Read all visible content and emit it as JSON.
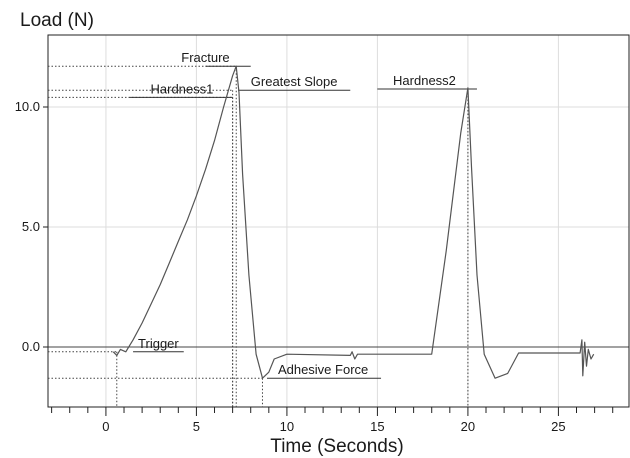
{
  "chart_data": {
    "type": "line",
    "ylabel": "Load (N)",
    "xlabel": "Time (Seconds)",
    "xlim": [
      -3.2,
      28.9
    ],
    "ylim": [
      -2.5,
      13.0
    ],
    "x_ticks": [
      0,
      5,
      10,
      15,
      20,
      25
    ],
    "x_tick_labels": [
      "0",
      "5",
      "10",
      "15",
      "20",
      "25"
    ],
    "y_ticks": [
      0,
      5,
      10
    ],
    "y_tick_labels": [
      "0.0",
      "5.0",
      "10.0"
    ],
    "grid": true,
    "series": [
      {
        "color": "#555555",
        "points": [
          [
            0.4,
            -0.2
          ],
          [
            0.6,
            -0.35
          ],
          [
            0.8,
            -0.1
          ],
          [
            1.1,
            -0.2
          ],
          [
            1.5,
            0.3
          ],
          [
            2.0,
            1.0
          ],
          [
            2.5,
            1.8
          ],
          [
            3.0,
            2.6
          ],
          [
            3.5,
            3.5
          ],
          [
            4.0,
            4.4
          ],
          [
            4.5,
            5.3
          ],
          [
            5.0,
            6.3
          ],
          [
            5.5,
            7.4
          ],
          [
            6.0,
            8.6
          ],
          [
            6.5,
            10.0
          ],
          [
            7.0,
            11.3
          ],
          [
            7.2,
            11.7
          ],
          [
            7.35,
            10.6
          ],
          [
            7.55,
            7.2
          ],
          [
            7.9,
            3.0
          ],
          [
            8.3,
            -0.3
          ],
          [
            8.65,
            -1.3
          ],
          [
            9.0,
            -1.05
          ],
          [
            9.3,
            -0.5
          ],
          [
            10.0,
            -0.3
          ],
          [
            13.5,
            -0.35
          ],
          [
            13.6,
            -0.2
          ],
          [
            13.75,
            -0.5
          ],
          [
            13.9,
            -0.3
          ],
          [
            18.0,
            -0.3
          ],
          [
            18.8,
            4.0
          ],
          [
            19.6,
            8.9
          ],
          [
            20.0,
            10.8
          ],
          [
            20.2,
            7.5
          ],
          [
            20.5,
            3.0
          ],
          [
            20.9,
            -0.3
          ],
          [
            21.5,
            -1.3
          ],
          [
            22.2,
            -1.1
          ],
          [
            22.8,
            -0.25
          ],
          [
            26.2,
            -0.25
          ],
          [
            26.3,
            0.3
          ],
          [
            26.35,
            -1.2
          ],
          [
            26.45,
            0.2
          ],
          [
            26.55,
            -0.8
          ],
          [
            26.65,
            -0.1
          ],
          [
            26.8,
            -0.5
          ],
          [
            26.95,
            -0.3
          ]
        ]
      }
    ],
    "annotations": [
      {
        "label": "Fracture",
        "x": 7.2,
        "y": 11.7
      },
      {
        "label": "Greatest Slope",
        "x": 7.0,
        "y": 10.7
      },
      {
        "label": "Hardness1",
        "x": 7.0,
        "y": 10.4
      },
      {
        "label": "Hardness2",
        "x": 20.0,
        "y": 10.75
      },
      {
        "label": "Trigger",
        "x": 0.6,
        "y": -0.2
      },
      {
        "label": "Adhesive Force",
        "x": 8.65,
        "y": -1.3
      }
    ]
  }
}
